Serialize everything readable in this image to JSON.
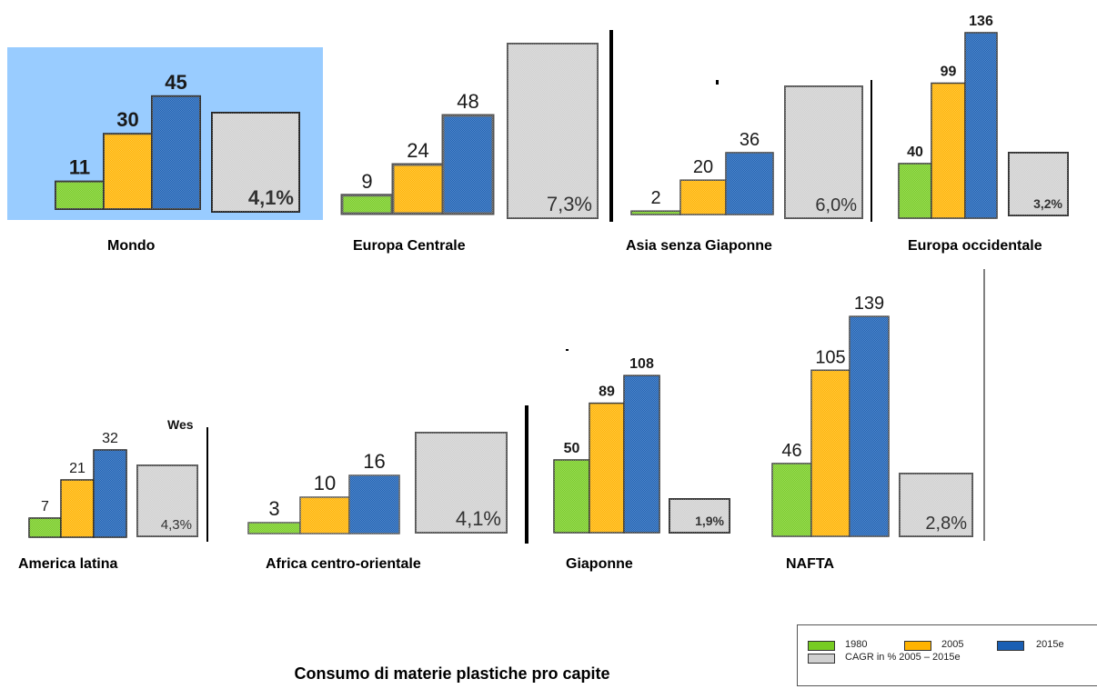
{
  "title": "Consumo di materie plastiche pro capite",
  "chart_data": {
    "type": "bar",
    "title": "Consumo di materie plastiche pro capite",
    "legend_placement": "bottom-right",
    "legend": [
      {
        "name": "1980",
        "color": "#77cc22"
      },
      {
        "name": "2005",
        "color": "#ffb300"
      },
      {
        "name": "2015e",
        "color": "#1a5fb4"
      },
      {
        "name": "CAGR in % 2005 – 2015e",
        "color": "#d0d0d0"
      }
    ],
    "regions": [
      {
        "name": "Mondo",
        "values": [
          11,
          30,
          45
        ],
        "value_labels": [
          "11",
          "30",
          "45"
        ],
        "cagr": "4,1%"
      },
      {
        "name": "Europa Centrale",
        "values": [
          9,
          24,
          48
        ],
        "value_labels": [
          "9",
          "24",
          "48"
        ],
        "cagr": "7,3%"
      },
      {
        "name": "Asia senza Giaponne",
        "values": [
          2,
          20,
          36
        ],
        "value_labels": [
          "2",
          "20",
          "36"
        ],
        "cagr": "6,0%"
      },
      {
        "name": "Europa occidentale",
        "values": [
          40,
          99,
          136
        ],
        "value_labels": [
          "40",
          "99",
          "136"
        ],
        "cagr": "3,2%"
      },
      {
        "name": "America latina",
        "values": [
          7,
          21,
          32
        ],
        "value_labels": [
          "7",
          "21",
          "32"
        ],
        "cagr": "4,3%"
      },
      {
        "name": "Africa centro-orientale",
        "values": [
          3,
          10,
          16
        ],
        "value_labels": [
          "3",
          "10",
          "16"
        ],
        "cagr": "4,1%"
      },
      {
        "name": "Giaponne",
        "values": [
          50,
          89,
          108
        ],
        "value_labels": [
          "50",
          "89",
          "108"
        ],
        "cagr": "1,9%"
      },
      {
        "name": "NAFTA",
        "values": [
          46,
          105,
          139
        ],
        "value_labels": [
          "46",
          "105",
          "139"
        ],
        "cagr": "2,8%"
      }
    ]
  },
  "side_text": "Wes"
}
